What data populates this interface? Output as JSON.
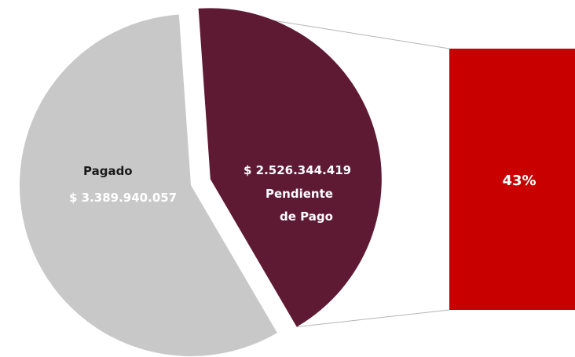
{
  "chart_data": {
    "type": "pie",
    "slices": [
      {
        "category": "Pagado",
        "value": 3389940057,
        "value_label": "$ 3.389.940.057",
        "color": "#c8c8c8"
      },
      {
        "category": "Pendiente de Pago",
        "category_lines": [
          "Pendiente",
          "de Pago"
        ],
        "value": 2526344419,
        "value_label": "$ 2.526.344.419",
        "color": "#5e1a33"
      }
    ],
    "detail_bar": {
      "label": "43%",
      "percent": 43,
      "color": "#c80000"
    },
    "exploded_slice": "Pendiente de Pago"
  }
}
